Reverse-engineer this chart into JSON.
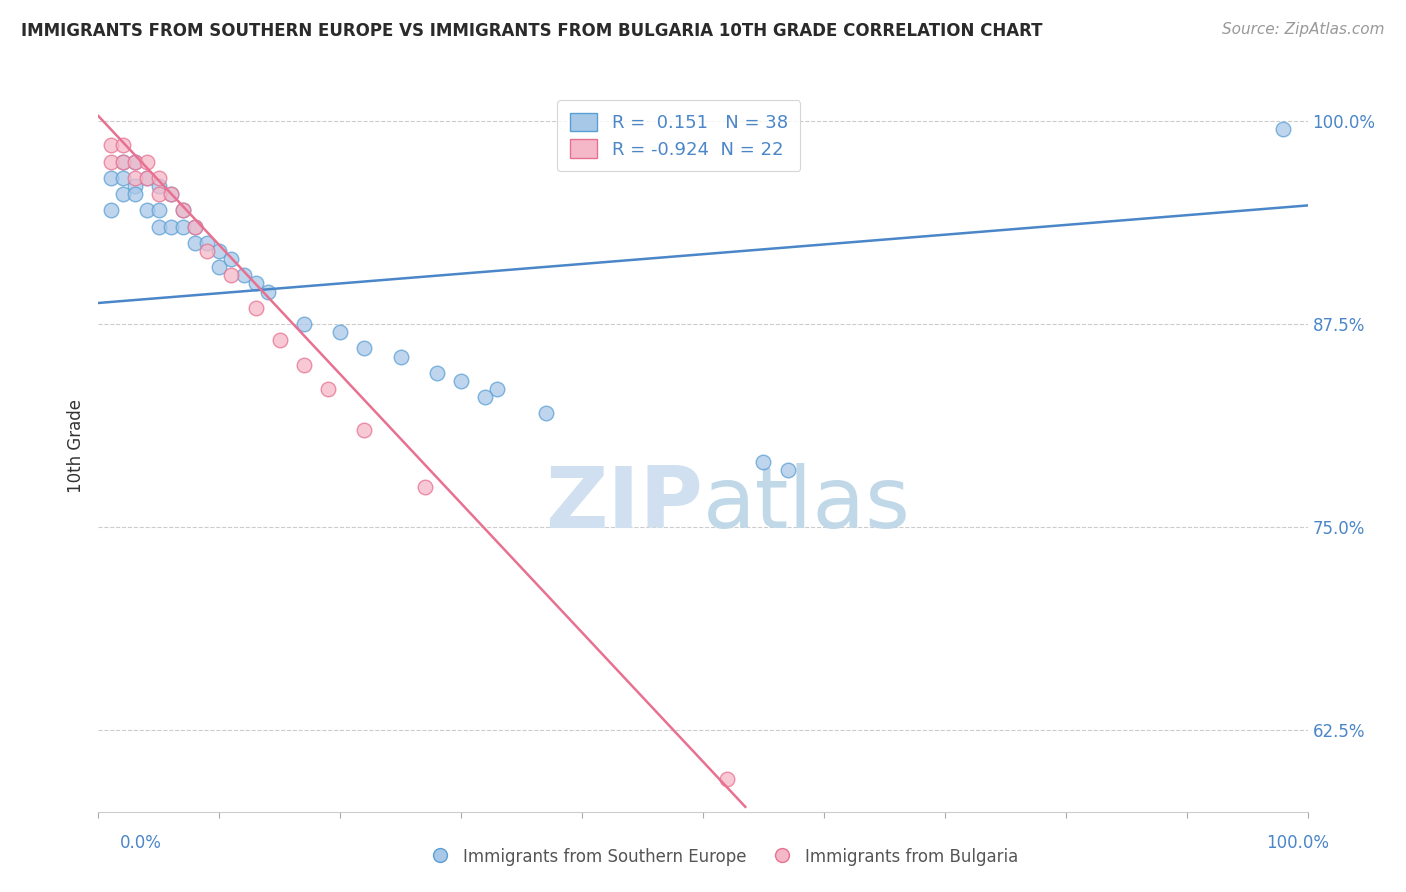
{
  "title": "IMMIGRANTS FROM SOUTHERN EUROPE VS IMMIGRANTS FROM BULGARIA 10TH GRADE CORRELATION CHART",
  "source": "Source: ZipAtlas.com",
  "ylabel": "10th Grade",
  "xlim": [
    0.0,
    1.0
  ],
  "ylim": [
    0.575,
    1.025
  ],
  "ytick_vals": [
    0.625,
    0.75,
    0.875,
    1.0
  ],
  "ytick_labels": [
    "62.5%",
    "75.0%",
    "87.5%",
    "100.0%"
  ],
  "xtick_vals": [
    0.0,
    0.1,
    0.2,
    0.3,
    0.4,
    0.5,
    0.6,
    0.7,
    0.8,
    0.9,
    1.0
  ],
  "blue_scatter_x": [
    0.01,
    0.01,
    0.02,
    0.02,
    0.02,
    0.03,
    0.03,
    0.03,
    0.04,
    0.04,
    0.05,
    0.05,
    0.05,
    0.06,
    0.06,
    0.07,
    0.07,
    0.08,
    0.08,
    0.09,
    0.1,
    0.1,
    0.11,
    0.12,
    0.13,
    0.14,
    0.17,
    0.2,
    0.22,
    0.25,
    0.28,
    0.3,
    0.33,
    0.37,
    0.55,
    0.57,
    0.98,
    0.32
  ],
  "blue_scatter_y": [
    0.965,
    0.945,
    0.975,
    0.965,
    0.955,
    0.975,
    0.96,
    0.955,
    0.965,
    0.945,
    0.96,
    0.945,
    0.935,
    0.955,
    0.935,
    0.945,
    0.935,
    0.935,
    0.925,
    0.925,
    0.92,
    0.91,
    0.915,
    0.905,
    0.9,
    0.895,
    0.875,
    0.87,
    0.86,
    0.855,
    0.845,
    0.84,
    0.835,
    0.82,
    0.79,
    0.785,
    0.995,
    0.83
  ],
  "pink_scatter_x": [
    0.01,
    0.01,
    0.02,
    0.02,
    0.03,
    0.03,
    0.04,
    0.04,
    0.05,
    0.05,
    0.06,
    0.07,
    0.08,
    0.09,
    0.11,
    0.13,
    0.15,
    0.17,
    0.19,
    0.22,
    0.27,
    0.52
  ],
  "pink_scatter_y": [
    0.985,
    0.975,
    0.985,
    0.975,
    0.975,
    0.965,
    0.975,
    0.965,
    0.965,
    0.955,
    0.955,
    0.945,
    0.935,
    0.92,
    0.905,
    0.885,
    0.865,
    0.85,
    0.835,
    0.81,
    0.775,
    0.595
  ],
  "blue_R": 0.151,
  "blue_N": 38,
  "pink_R": -0.924,
  "pink_N": 22,
  "blue_line_x0": 0.0,
  "blue_line_x1": 1.0,
  "blue_line_y0": 0.888,
  "blue_line_y1": 0.948,
  "pink_line_x0": 0.0,
  "pink_line_x1": 0.535,
  "pink_line_y0": 1.003,
  "pink_line_y1": 0.578,
  "blue_dot_color": "#a8c8e8",
  "blue_edge_color": "#5a9fd4",
  "pink_dot_color": "#f4b8c8",
  "pink_edge_color": "#e87090",
  "blue_line_color": "#4a86c8",
  "pink_line_color": "#e87090",
  "grid_color": "#cccccc",
  "title_color": "#2a2a2a",
  "source_color": "#999999",
  "axis_label_color": "#4a86c8",
  "ylabel_color": "#333333",
  "legend_text_color": "#4a86c8",
  "bottom_label_color": "#555555",
  "watermark_zip_color": "#d0e0f0",
  "watermark_atlas_color": "#c0d8e8",
  "background_color": "#ffffff"
}
